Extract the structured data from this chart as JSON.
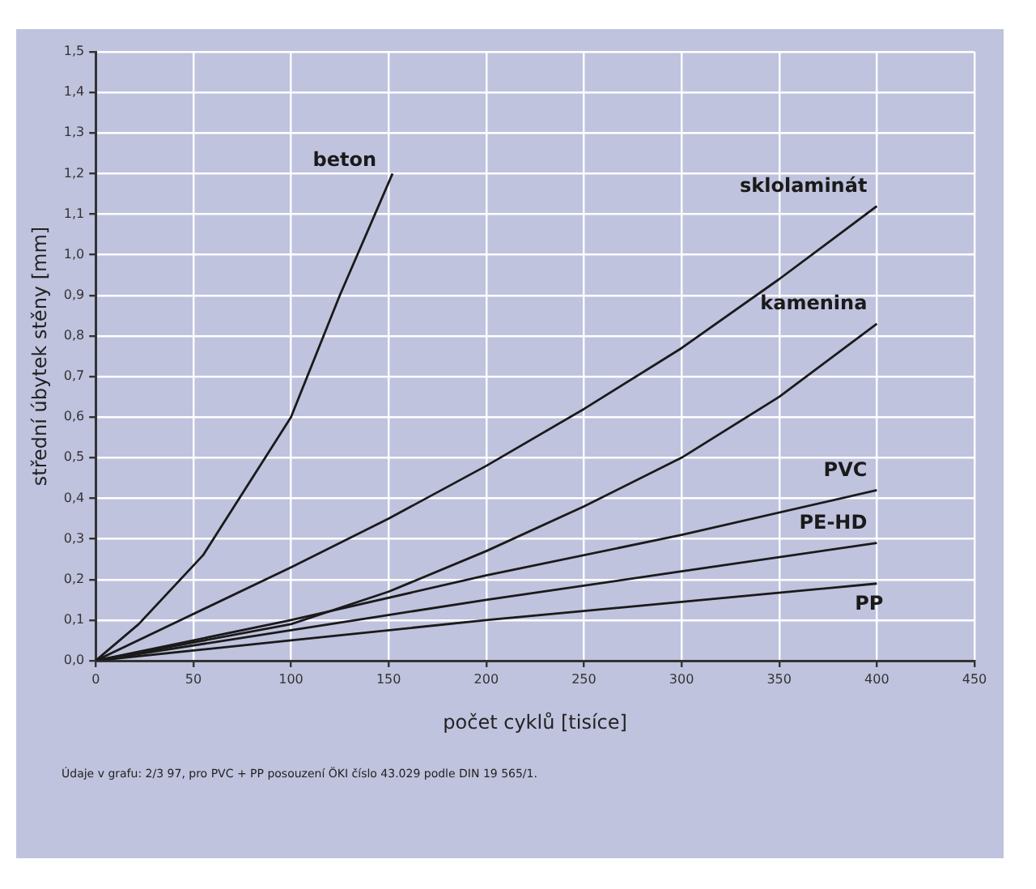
{
  "chart_data": {
    "type": "line",
    "xlabel": "počet cyklů [tisíce]",
    "ylabel": "střední úbytek stěny [mm]",
    "xlim": [
      0,
      450
    ],
    "xticks": [
      0,
      50,
      100,
      150,
      200,
      250,
      300,
      350,
      400,
      450
    ],
    "ylim": [
      0,
      1.5
    ],
    "yticks": [
      {
        "value": 0,
        "label": "0,0"
      },
      {
        "value": 0.1,
        "label": "0,1"
      },
      {
        "value": 0.2,
        "label": "0,2"
      },
      {
        "value": 0.3,
        "label": "0,3"
      },
      {
        "value": 0.4,
        "label": "0,4"
      },
      {
        "value": 0.5,
        "label": "0,5"
      },
      {
        "value": 0.6,
        "label": "0,6"
      },
      {
        "value": 0.7,
        "label": "0,7"
      },
      {
        "value": 0.8,
        "label": "0,8"
      },
      {
        "value": 0.9,
        "label": "0,9"
      },
      {
        "value": 1.0,
        "label": "1,0"
      },
      {
        "value": 1.1,
        "label": "1,1"
      },
      {
        "value": 1.2,
        "label": "1,2"
      },
      {
        "value": 1.3,
        "label": "1,3"
      },
      {
        "value": 1.4,
        "label": "1,4"
      },
      {
        "value": 1.5,
        "label": "1,5"
      }
    ],
    "grid": true,
    "legend": false,
    "marker": "none",
    "line_style": "solid",
    "series": [
      {
        "name": "beton",
        "color": "#1a1a1a",
        "x": [
          0,
          22,
          55,
          100,
          125,
          152
        ],
        "values": [
          0,
          0.09,
          0.26,
          0.6,
          0.9,
          1.2
        ]
      },
      {
        "name": "sklolaminát",
        "color": "#1a1a1a",
        "x": [
          0,
          100,
          150,
          200,
          250,
          300,
          350,
          400
        ],
        "values": [
          0,
          0.23,
          0.35,
          0.48,
          0.62,
          0.77,
          0.94,
          1.12
        ]
      },
      {
        "name": "kamenina",
        "color": "#1a1a1a",
        "x": [
          0,
          100,
          150,
          200,
          250,
          300,
          350,
          400
        ],
        "values": [
          0,
          0.09,
          0.17,
          0.27,
          0.38,
          0.5,
          0.65,
          0.83
        ]
      },
      {
        "name": "PVC",
        "color": "#1a1a1a",
        "x": [
          0,
          100,
          200,
          300,
          400
        ],
        "values": [
          0,
          0.1,
          0.21,
          0.31,
          0.42
        ]
      },
      {
        "name": "PE-HD",
        "color": "#1a1a1a",
        "x": [
          0,
          100,
          200,
          300,
          400
        ],
        "values": [
          0,
          0.075,
          0.15,
          0.22,
          0.29
        ]
      },
      {
        "name": "PP",
        "color": "#1a1a1a",
        "x": [
          0,
          100,
          200,
          300,
          400
        ],
        "values": [
          0,
          0.05,
          0.1,
          0.145,
          0.19
        ]
      }
    ],
    "annotations": [
      "Údaje v grafu: 2/3 97, pro PVC + PP posouzení ÖKI číslo 43.029 podle DIN 19 565/1."
    ]
  }
}
